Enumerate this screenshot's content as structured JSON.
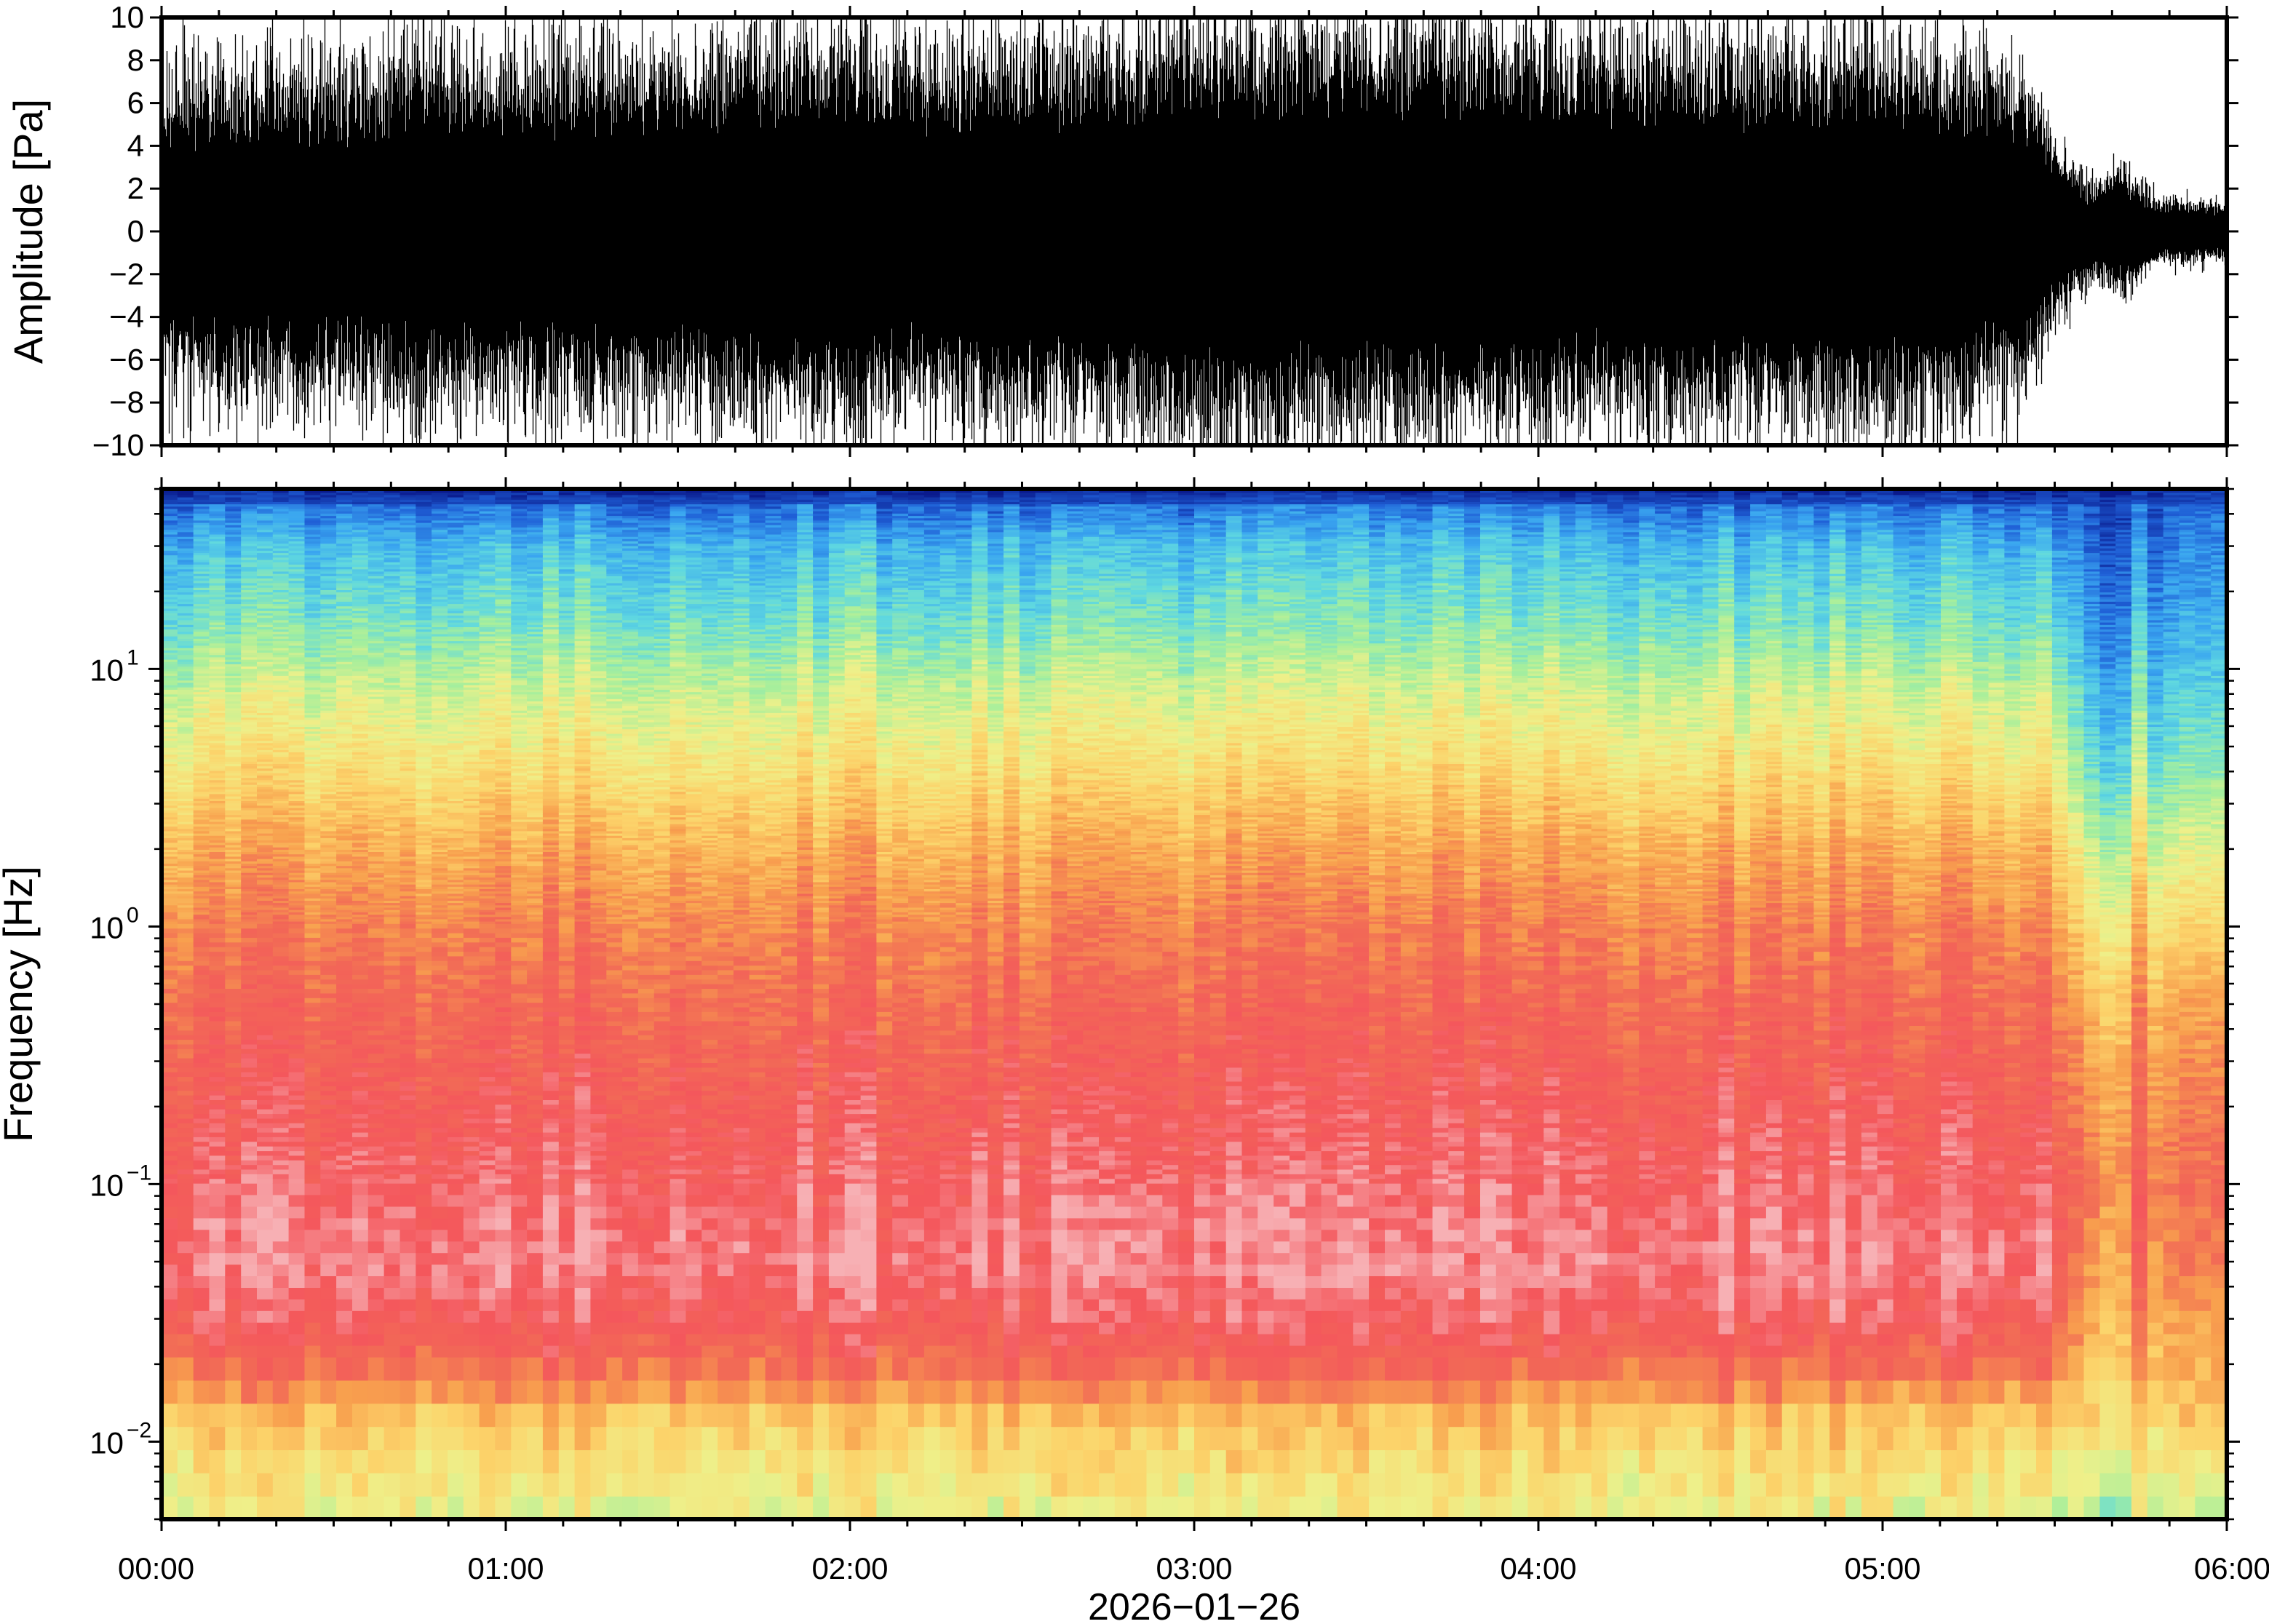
{
  "chart_data": [
    {
      "type": "line",
      "ylabel": "Amplitude [Pa]",
      "ylim": [
        -10,
        10
      ],
      "yticks": [
        -10,
        -8,
        -6,
        -4,
        -2,
        0,
        2,
        4,
        6,
        8,
        10
      ],
      "ytick_labels": [
        "−10",
        "−8",
        "−6",
        "−4",
        "−2",
        "0",
        "2",
        "4",
        "6",
        "8",
        "10"
      ],
      "xlim_hours": [
        0,
        6
      ],
      "envelope": {
        "x_hours": [
          0,
          0.25,
          0.5,
          0.75,
          1.0,
          1.25,
          1.5,
          1.75,
          2.0,
          2.25,
          2.5,
          2.75,
          3.0,
          3.25,
          3.5,
          3.75,
          4.0,
          4.25,
          4.5,
          4.75,
          5.0,
          5.25,
          5.4,
          5.5,
          5.6,
          5.7,
          5.8,
          5.9,
          6.0
        ],
        "dense_half_width": [
          4.5,
          5,
          5,
          5.5,
          5.5,
          5.5,
          5.5,
          6,
          6,
          5.5,
          6,
          6,
          6.5,
          6.5,
          6.5,
          6.5,
          6,
          6,
          6,
          6,
          6,
          5.5,
          5,
          3,
          1.5,
          2,
          1,
          1,
          0.8
        ],
        "peak_max": [
          10,
          10,
          9,
          10,
          10,
          10,
          10,
          10,
          10,
          10,
          9,
          10,
          10,
          10,
          10,
          10,
          10,
          10,
          10,
          10,
          10,
          10,
          9,
          5,
          3,
          3,
          2,
          1.5,
          1
        ]
      }
    },
    {
      "type": "heatmap",
      "ylabel": "Frequency [Hz]",
      "xlabel": "2026−01−26",
      "y_scale": "log",
      "ylim": [
        0.005,
        50
      ],
      "ytick_labels": [
        {
          "base": "10",
          "exp": "−2"
        },
        {
          "base": "10",
          "exp": "−1"
        },
        {
          "base": "10",
          "exp": "0"
        },
        {
          "base": "10",
          "exp": "1"
        }
      ],
      "xtick_labels": [
        "00:00",
        "01:00",
        "02:00",
        "03:00",
        "04:00",
        "05:00",
        "06:00"
      ],
      "xlim_hours": [
        0,
        6
      ],
      "colormap": [
        "#0a1a8c",
        "#1f5fd6",
        "#3aa6f0",
        "#5fd8e0",
        "#a6ef9c",
        "#eef08a",
        "#fcd36a",
        "#f8a04e",
        "#f26a56",
        "#f4575c",
        "#f7b0b4"
      ],
      "colormap_note": "rainbow: blue (low power) to red, pale pink (highest)",
      "spectral_profile": {
        "freq_hz": [
          50,
          45,
          30,
          15,
          8,
          4,
          2,
          1,
          0.5,
          0.2,
          0.1,
          0.05,
          0.03,
          0.02,
          0.012,
          0.005
        ],
        "level_main": [
          0.0,
          0.12,
          0.25,
          0.35,
          0.47,
          0.57,
          0.68,
          0.76,
          0.82,
          0.88,
          0.92,
          0.96,
          0.9,
          0.82,
          0.62,
          0.5
        ],
        "level_quiet_end": [
          0.0,
          0.08,
          0.12,
          0.18,
          0.25,
          0.33,
          0.45,
          0.55,
          0.65,
          0.72,
          0.76,
          0.72,
          0.67,
          0.63,
          0.58,
          0.4
        ]
      },
      "quiet_period_start_hours": 5.5
    }
  ]
}
